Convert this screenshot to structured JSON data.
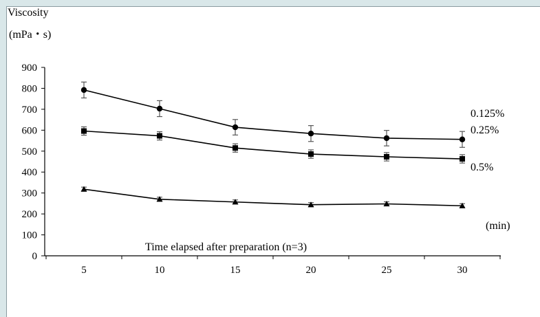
{
  "chart_data": {
    "type": "line",
    "ylabel_line1": "Viscosity",
    "ylabel_line2": "(mPa・s)",
    "xlabel": "Time elapsed after preparation (n=3)",
    "xunit": "(min)",
    "x": [
      5,
      10,
      15,
      20,
      25,
      30
    ],
    "ylim": [
      0,
      900
    ],
    "yticks": [
      0,
      100,
      200,
      300,
      400,
      500,
      600,
      700,
      800,
      900
    ],
    "grid": false,
    "series": [
      {
        "name": "0.125%",
        "marker": "circle",
        "values": [
          792,
          703,
          614,
          584,
          562,
          556
        ],
        "errors": [
          38,
          38,
          37,
          38,
          37,
          38
        ]
      },
      {
        "name": "0.25%",
        "marker": "square",
        "values": [
          596,
          573,
          515,
          486,
          473,
          463
        ],
        "errors": [
          20,
          20,
          20,
          20,
          20,
          20
        ]
      },
      {
        "name": "0.5%",
        "marker": "triangle",
        "values": [
          318,
          270,
          257,
          244,
          248,
          239
        ],
        "errors": [
          10,
          10,
          10,
          10,
          10,
          10
        ]
      }
    ]
  }
}
